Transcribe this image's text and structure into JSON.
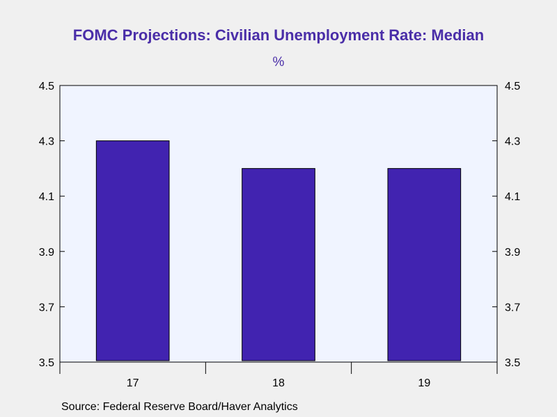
{
  "chart_data": {
    "type": "bar",
    "title": "FOMC Projections: Civilian Unemployment Rate: Median",
    "unit_label": "%",
    "categories": [
      "17",
      "18",
      "19"
    ],
    "values": [
      4.3,
      4.2,
      4.2
    ],
    "ylim": [
      3.5,
      4.5
    ],
    "y_ticks": [
      "3.5",
      "3.7",
      "3.9",
      "4.1",
      "4.3",
      "4.5"
    ],
    "y_axis_both_sides": true,
    "grid": false,
    "bar_color": "#4123b0",
    "plot_background": "#f0f4ff",
    "title_color": "#4a2ea8"
  },
  "source": "Source:  Federal Reserve Board/Haver Analytics"
}
